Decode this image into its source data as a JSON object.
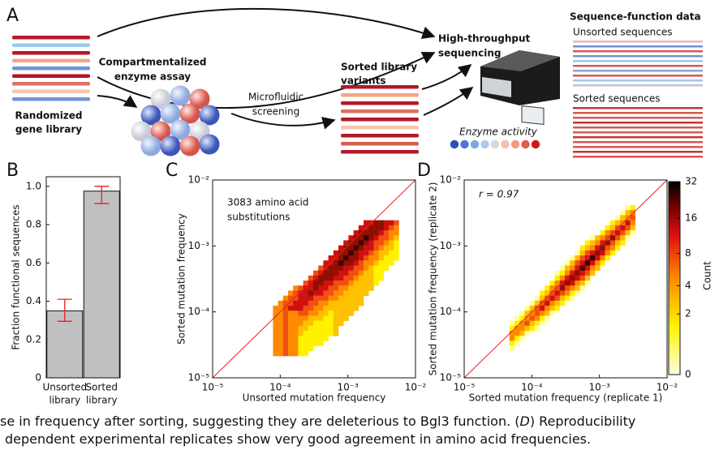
{
  "figure": {
    "panel_a": {
      "label": "A",
      "library": [
        "Randomized",
        "gene library"
      ],
      "assay": [
        "Compartmentalized",
        "enzyme assay"
      ],
      "screening": [
        "Microfluidic",
        "screening"
      ],
      "sorted": [
        "Sorted library",
        "variants"
      ],
      "sequencing": [
        "High-throughput",
        "sequencing"
      ],
      "data_title": "Sequence-function data",
      "unsorted_seq": "Unsorted sequences",
      "sorted_seq": "Sorted sequences",
      "activity": "Enzyme activity"
    },
    "panel_b": {
      "label": "B",
      "type": "bar",
      "ylabel": "Fraction functional sequences",
      "categories": [
        [
          "Unsorted",
          "library"
        ],
        [
          "Sorted",
          "library"
        ]
      ],
      "values": [
        0.35,
        0.975
      ],
      "err_low": [
        0.295,
        0.91
      ],
      "err_high": [
        0.41,
        1.0
      ],
      "color": "#c0c0c0",
      "err_color": "#e8221f",
      "ylim": [
        0,
        1.05
      ],
      "yticks": [
        0,
        0.2,
        0.4,
        0.6,
        0.8,
        {
          "value": 1,
          "label": "1.0"
        }
      ]
    },
    "panel_c": {
      "label": "C",
      "type": "heatmap",
      "annotation": [
        "3083 amino acid",
        "substitutions"
      ],
      "xlabel": "Unsorted mutation frequency",
      "ylabel": "Sorted mutation frequency",
      "log": true,
      "xlim": [
        1e-05,
        0.01
      ],
      "ylim": [
        1e-05,
        0.01
      ],
      "xticks": [
        {
          "value": 1e-05,
          "label": "10⁻⁵"
        },
        {
          "value": 0.0001,
          "label": "10⁻⁴"
        },
        {
          "value": 0.001,
          "label": "10⁻³"
        },
        {
          "value": 0.01,
          "label": "10⁻²"
        }
      ],
      "yticks": [
        {
          "value": 1e-05,
          "label": "10⁻⁵"
        },
        {
          "value": 0.0001,
          "label": "10⁻⁴"
        },
        {
          "value": 0.001,
          "label": "10⁻³"
        },
        {
          "value": 0.01,
          "label": "10⁻²"
        }
      ]
    },
    "panel_d": {
      "label": "D",
      "type": "heatmap",
      "annotation": "r = 0.97",
      "xlabel": "Sorted mutation frequency (replicate 1)",
      "ylabel": "Sorted mutation frequency (replicate 2)",
      "log": true,
      "xlim": [
        1e-05,
        0.01
      ],
      "ylim": [
        1e-05,
        0.01
      ],
      "xticks": [
        {
          "value": 1e-05,
          "label": "10⁻⁵"
        },
        {
          "value": 0.0001,
          "label": "10⁻⁴"
        },
        {
          "value": 0.001,
          "label": "10⁻³"
        },
        {
          "value": 0.01,
          "label": "10⁻²"
        }
      ],
      "yticks": [
        {
          "value": 1e-05,
          "label": "10⁻⁵"
        },
        {
          "value": 0.0001,
          "label": "10⁻⁴"
        },
        {
          "value": 0.001,
          "label": "10⁻³"
        },
        {
          "value": 0.01,
          "label": "10⁻²"
        }
      ],
      "colorbar": {
        "label": "Count",
        "lim": [
          0,
          32
        ],
        "ticks": [
          0,
          2,
          4,
          8,
          16,
          32
        ]
      }
    },
    "caption": [
      [
        "se in frequency after sorting, suggesting they are deleterious to Bgl3 function. (",
        "D",
        ") Reproducibility"
      ],
      [
        "dependent experimental replicates show very good agreement in amino acid frequencies."
      ]
    ]
  }
}
